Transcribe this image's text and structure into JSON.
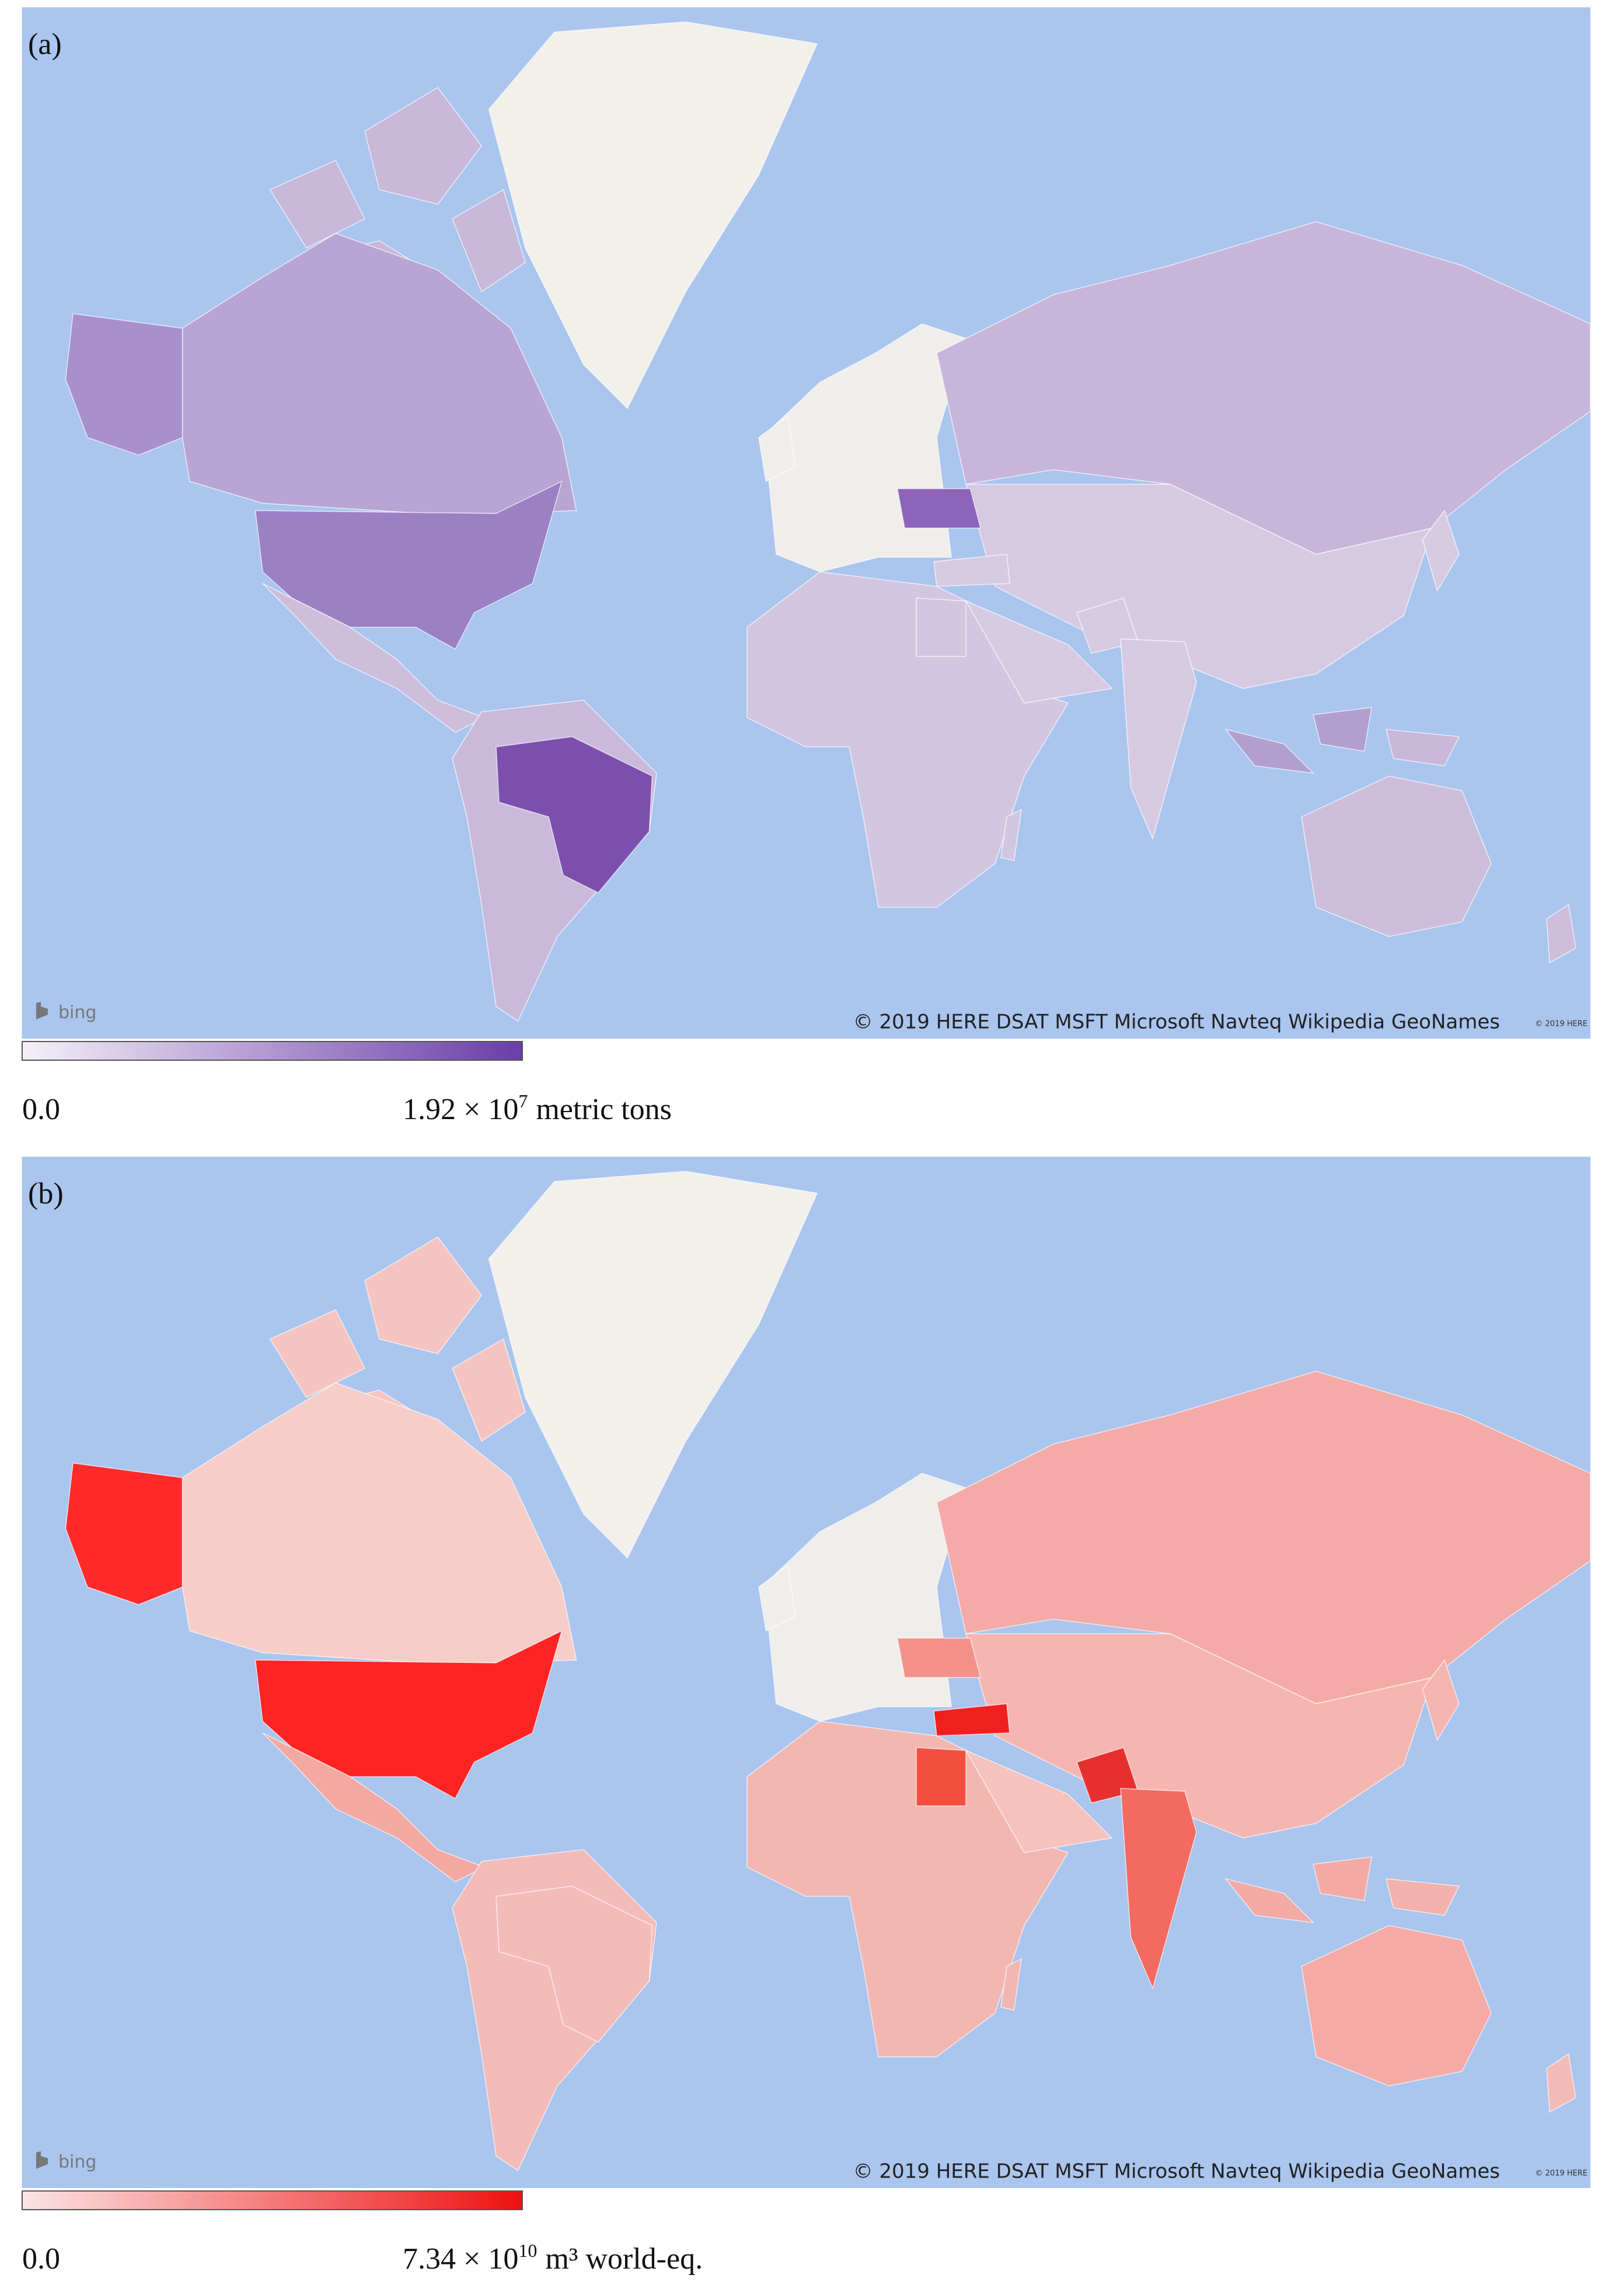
{
  "panels": [
    {
      "label": "(a)",
      "logo": "bing",
      "attribution": "© 2019 HERE DSAT MSFT Microsoft Navteq Wikipedia GeoNames",
      "attribution_small": "© 2019 HERE",
      "legend": {
        "min": "0.0",
        "max_base": "1.92 × 10",
        "max_exponent": "7",
        "max_unit": "metric tons",
        "color_low": "#f4f0f8",
        "color_high": "#6a3da8"
      }
    },
    {
      "label": "(b)",
      "logo": "bing",
      "attribution": "© 2019 HERE DSAT MSFT Microsoft Navteq Wikipedia GeoNames",
      "attribution_small": "© 2019 HERE",
      "legend": {
        "min": "0.0",
        "max_base": "7.34 × 10",
        "max_exponent": "10",
        "max_unit": "m³ world-eq.",
        "color_low": "#fbe4e4",
        "color_high": "#ee1111"
      }
    }
  ]
}
